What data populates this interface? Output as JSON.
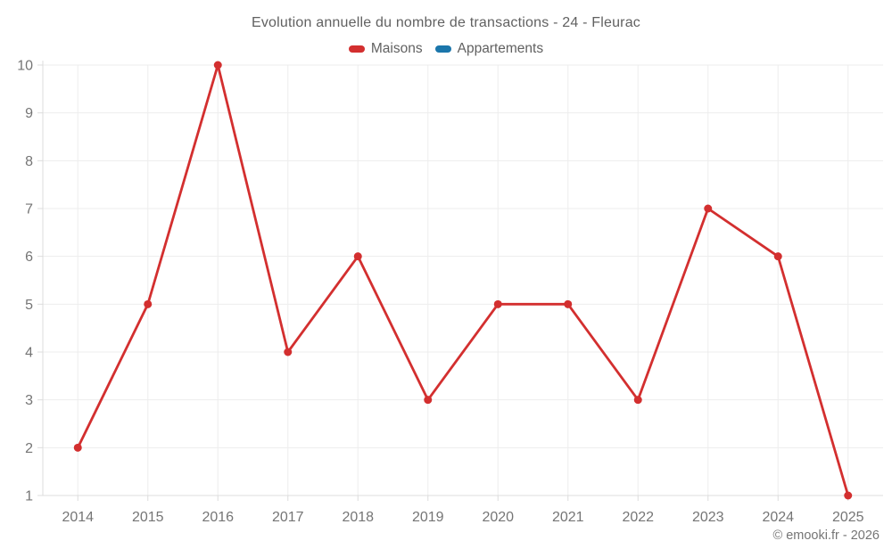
{
  "header": {
    "title": "Evolution annuelle du nombre de transactions - 24 - Fleurac"
  },
  "legend": [
    {
      "label": "Maisons",
      "color": "#d32f2f"
    },
    {
      "label": "Appartements",
      "color": "#1b76ab"
    }
  ],
  "footer": {
    "copyright": "© emooki.fr - 2026"
  },
  "colors": {
    "maisons_red": "#d32f2f",
    "appartements_blue": "#1b76ab",
    "title_text": "#616161",
    "axis_label_text": "#757575",
    "gridline": "#ededed",
    "axis_line": "#dcdcdc"
  },
  "chart_data": {
    "type": "line",
    "title": "Evolution annuelle du nombre de transactions - 24 - Fleurac",
    "categories": [
      "2014",
      "2015",
      "2016",
      "2017",
      "2018",
      "2019",
      "2020",
      "2021",
      "2022",
      "2023",
      "2024",
      "2025"
    ],
    "series": [
      {
        "name": "Maisons",
        "color": "#d32f2f",
        "values": [
          2,
          5,
          10,
          4,
          6,
          3,
          5,
          5,
          3,
          7,
          6,
          1
        ]
      },
      {
        "name": "Appartements",
        "color": "#1b76ab",
        "values": []
      }
    ],
    "xlabel": "",
    "ylabel": "",
    "ylim": [
      1,
      10
    ],
    "yticks": [
      1,
      2,
      3,
      4,
      5,
      6,
      7,
      8,
      9,
      10
    ],
    "grid": true,
    "legend_position": "top"
  }
}
